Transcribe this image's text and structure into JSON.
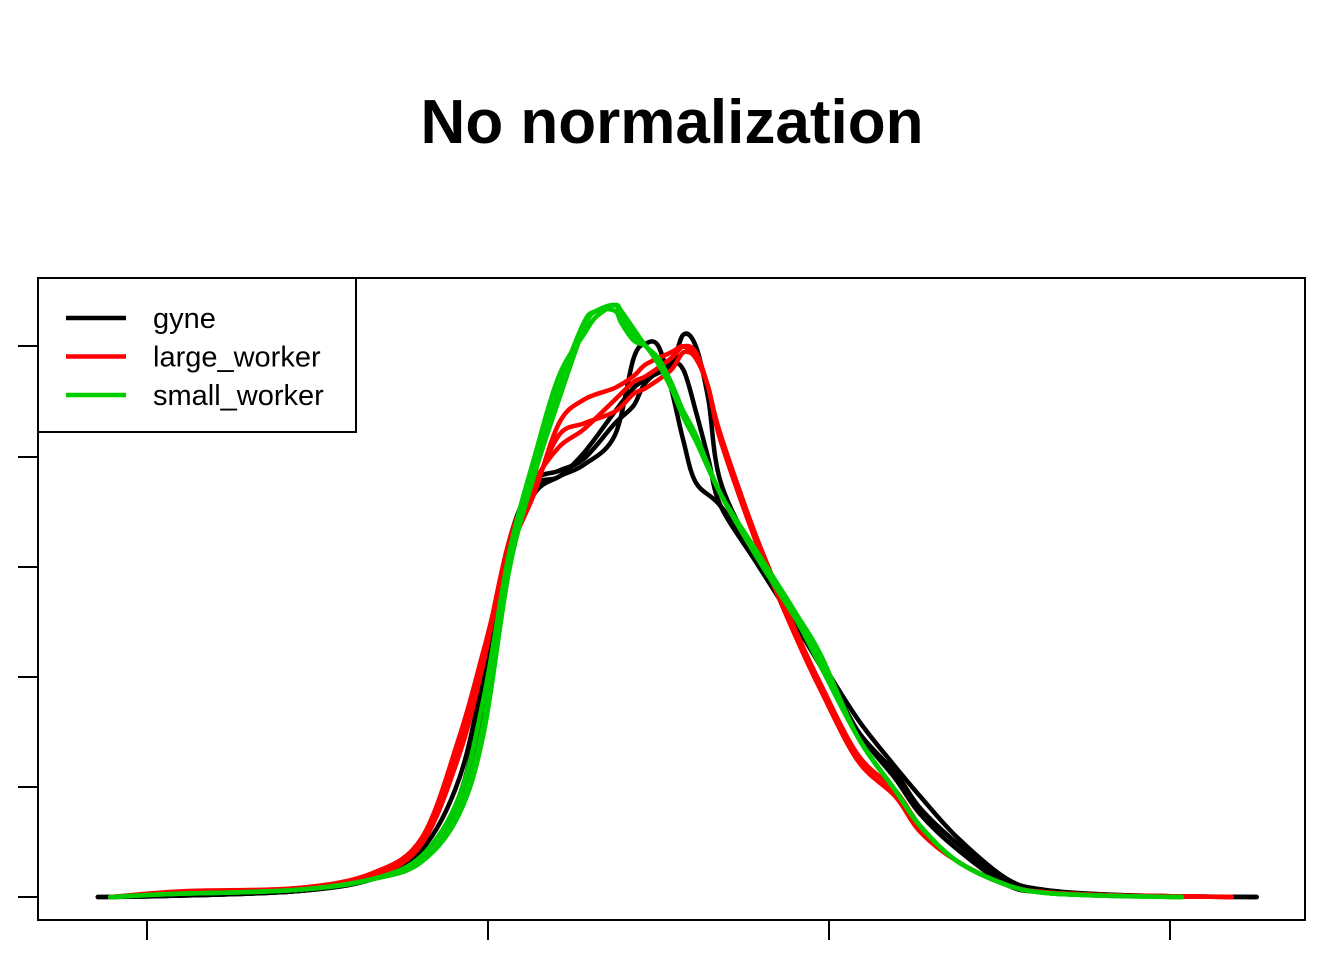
{
  "chart_data": {
    "type": "line",
    "title": "No normalization",
    "xlabel": "",
    "ylabel": "",
    "x_tick_labels": [],
    "y_tick_labels": [],
    "xlim": [
      0,
      1
    ],
    "ylim": [
      0,
      1
    ],
    "legend": {
      "position": "top-left",
      "entries": [
        {
          "label": "gyne",
          "color": "#000000"
        },
        {
          "label": "large_worker",
          "color": "#ff0000"
        },
        {
          "label": "small_worker",
          "color": "#00cd00"
        }
      ]
    },
    "series": [
      {
        "group": "gyne",
        "color": "#000000",
        "x": [
          0.04,
          0.1,
          0.2,
          0.26,
          0.3,
          0.33,
          0.35,
          0.37,
          0.39,
          0.41,
          0.43,
          0.455,
          0.47,
          0.48,
          0.49,
          0.5,
          0.51,
          0.52,
          0.54,
          0.57,
          0.6,
          0.62,
          0.65,
          0.68,
          0.7,
          0.73,
          0.77,
          0.8,
          0.85,
          0.91,
          0.97
        ],
        "y": [
          0,
          0.002,
          0.01,
          0.03,
          0.07,
          0.17,
          0.35,
          0.58,
          0.68,
          0.71,
          0.73,
          0.78,
          0.91,
          0.935,
          0.93,
          0.86,
          0.77,
          0.7,
          0.66,
          0.57,
          0.47,
          0.4,
          0.28,
          0.2,
          0.14,
          0.08,
          0.02,
          0.008,
          0.003,
          0.001,
          0
        ]
      },
      {
        "group": "gyne",
        "color": "#000000",
        "x": [
          0.04,
          0.1,
          0.2,
          0.26,
          0.3,
          0.33,
          0.35,
          0.37,
          0.39,
          0.41,
          0.43,
          0.455,
          0.47,
          0.48,
          0.5,
          0.51,
          0.52,
          0.53,
          0.54,
          0.57,
          0.6,
          0.62,
          0.65,
          0.68,
          0.7,
          0.73,
          0.77,
          0.8,
          0.85,
          0.91,
          0.97
        ],
        "y": [
          0,
          0.002,
          0.01,
          0.03,
          0.08,
          0.2,
          0.38,
          0.6,
          0.7,
          0.72,
          0.74,
          0.8,
          0.83,
          0.87,
          0.9,
          0.89,
          0.82,
          0.74,
          0.66,
          0.56,
          0.46,
          0.39,
          0.28,
          0.21,
          0.15,
          0.09,
          0.025,
          0.01,
          0.004,
          0.001,
          0
        ]
      },
      {
        "group": "gyne",
        "color": "#000000",
        "x": [
          0.05,
          0.1,
          0.2,
          0.26,
          0.3,
          0.33,
          0.35,
          0.37,
          0.39,
          0.41,
          0.43,
          0.455,
          0.47,
          0.48,
          0.5,
          0.51,
          0.52,
          0.53,
          0.54,
          0.57,
          0.6,
          0.62,
          0.65,
          0.68,
          0.7,
          0.73,
          0.77,
          0.8,
          0.85,
          0.91,
          0.97
        ],
        "y": [
          0,
          0.002,
          0.01,
          0.03,
          0.06,
          0.15,
          0.32,
          0.57,
          0.69,
          0.71,
          0.75,
          0.82,
          0.86,
          0.875,
          0.9,
          0.95,
          0.93,
          0.84,
          0.7,
          0.57,
          0.47,
          0.4,
          0.3,
          0.22,
          0.17,
          0.1,
          0.03,
          0.012,
          0.004,
          0.001,
          0
        ]
      },
      {
        "group": "large_worker",
        "color": "#ff0000",
        "x": [
          0.05,
          0.11,
          0.2,
          0.26,
          0.3,
          0.33,
          0.35,
          0.37,
          0.39,
          0.41,
          0.43,
          0.455,
          0.47,
          0.48,
          0.5,
          0.51,
          0.52,
          0.53,
          0.54,
          0.57,
          0.6,
          0.62,
          0.65,
          0.68,
          0.7,
          0.73,
          0.77,
          0.8,
          0.85,
          0.91,
          0.95
        ],
        "y": [
          0,
          0.01,
          0.015,
          0.04,
          0.1,
          0.27,
          0.42,
          0.58,
          0.68,
          0.8,
          0.84,
          0.86,
          0.88,
          0.9,
          0.92,
          0.93,
          0.91,
          0.86,
          0.77,
          0.6,
          0.45,
          0.36,
          0.24,
          0.18,
          0.12,
          0.06,
          0.02,
          0.008,
          0.003,
          0.001,
          0
        ]
      },
      {
        "group": "large_worker",
        "color": "#ff0000",
        "x": [
          0.05,
          0.11,
          0.2,
          0.26,
          0.3,
          0.33,
          0.35,
          0.37,
          0.39,
          0.41,
          0.43,
          0.455,
          0.47,
          0.48,
          0.5,
          0.51,
          0.52,
          0.53,
          0.54,
          0.57,
          0.6,
          0.62,
          0.65,
          0.68,
          0.7,
          0.73,
          0.77,
          0.8,
          0.85,
          0.91,
          0.95
        ],
        "y": [
          0,
          0.008,
          0.015,
          0.035,
          0.09,
          0.24,
          0.4,
          0.6,
          0.7,
          0.76,
          0.79,
          0.84,
          0.87,
          0.88,
          0.91,
          0.93,
          0.92,
          0.86,
          0.78,
          0.6,
          0.45,
          0.36,
          0.24,
          0.18,
          0.12,
          0.06,
          0.02,
          0.008,
          0.003,
          0.001,
          0
        ]
      },
      {
        "group": "large_worker",
        "color": "#ff0000",
        "x": [
          0.05,
          0.11,
          0.2,
          0.26,
          0.3,
          0.33,
          0.35,
          0.37,
          0.39,
          0.41,
          0.43,
          0.455,
          0.47,
          0.48,
          0.5,
          0.51,
          0.52,
          0.53,
          0.54,
          0.57,
          0.6,
          0.62,
          0.65,
          0.68,
          0.7,
          0.73,
          0.77,
          0.8,
          0.85,
          0.91,
          0.95
        ],
        "y": [
          0,
          0.008,
          0.012,
          0.035,
          0.09,
          0.25,
          0.41,
          0.6,
          0.69,
          0.78,
          0.8,
          0.82,
          0.85,
          0.86,
          0.89,
          0.92,
          0.91,
          0.86,
          0.77,
          0.59,
          0.44,
          0.35,
          0.23,
          0.17,
          0.11,
          0.06,
          0.02,
          0.008,
          0.003,
          0.001,
          0
        ]
      },
      {
        "group": "small_worker",
        "color": "#00cd00",
        "x": [
          0.05,
          0.1,
          0.2,
          0.26,
          0.3,
          0.33,
          0.35,
          0.37,
          0.39,
          0.41,
          0.43,
          0.44,
          0.455,
          0.46,
          0.47,
          0.48,
          0.49,
          0.5,
          0.51,
          0.52,
          0.54,
          0.57,
          0.6,
          0.62,
          0.65,
          0.68,
          0.7,
          0.73,
          0.77,
          0.8,
          0.85,
          0.91
        ],
        "y": [
          0,
          0.005,
          0.012,
          0.03,
          0.06,
          0.15,
          0.3,
          0.56,
          0.72,
          0.86,
          0.97,
          0.99,
          1.0,
          0.98,
          0.95,
          0.93,
          0.9,
          0.86,
          0.82,
          0.78,
          0.68,
          0.58,
          0.48,
          0.4,
          0.27,
          0.18,
          0.12,
          0.06,
          0.02,
          0.007,
          0.002,
          0
        ]
      },
      {
        "group": "small_worker",
        "color": "#00cd00",
        "x": [
          0.05,
          0.1,
          0.2,
          0.26,
          0.3,
          0.33,
          0.35,
          0.37,
          0.39,
          0.41,
          0.43,
          0.44,
          0.455,
          0.46,
          0.47,
          0.48,
          0.49,
          0.5,
          0.51,
          0.52,
          0.54,
          0.57,
          0.6,
          0.62,
          0.65,
          0.68,
          0.7,
          0.73,
          0.77,
          0.8,
          0.85,
          0.91
        ],
        "y": [
          0,
          0.005,
          0.012,
          0.03,
          0.07,
          0.17,
          0.34,
          0.58,
          0.74,
          0.88,
          0.95,
          0.98,
          1.0,
          0.99,
          0.96,
          0.93,
          0.91,
          0.87,
          0.82,
          0.78,
          0.68,
          0.57,
          0.47,
          0.39,
          0.27,
          0.18,
          0.12,
          0.06,
          0.02,
          0.007,
          0.002,
          0
        ]
      },
      {
        "group": "small_worker",
        "color": "#00cd00",
        "x": [
          0.05,
          0.1,
          0.2,
          0.26,
          0.3,
          0.33,
          0.35,
          0.37,
          0.39,
          0.41,
          0.43,
          0.44,
          0.455,
          0.46,
          0.47,
          0.48,
          0.49,
          0.5,
          0.51,
          0.52,
          0.54,
          0.57,
          0.6,
          0.62,
          0.65,
          0.68,
          0.7,
          0.73,
          0.77,
          0.8,
          0.85,
          0.91
        ],
        "y": [
          0,
          0.005,
          0.012,
          0.03,
          0.06,
          0.14,
          0.28,
          0.55,
          0.71,
          0.84,
          0.96,
          0.99,
          0.99,
          0.97,
          0.94,
          0.93,
          0.9,
          0.86,
          0.81,
          0.77,
          0.68,
          0.58,
          0.48,
          0.41,
          0.27,
          0.18,
          0.12,
          0.06,
          0.02,
          0.007,
          0.002,
          0
        ]
      }
    ]
  }
}
